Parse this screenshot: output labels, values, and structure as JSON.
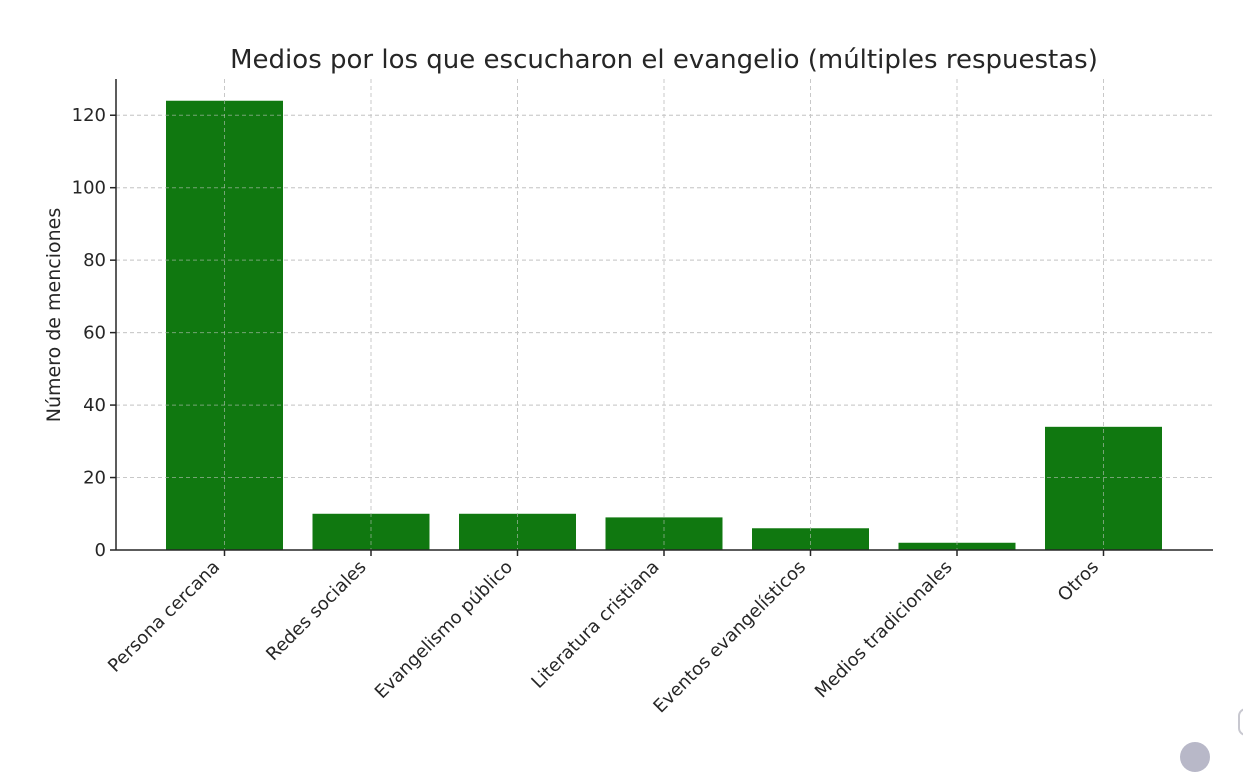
{
  "chart_data": {
    "type": "bar",
    "title": "Medios por los que escucharon el evangelio (múltiples respuestas)",
    "xlabel": "",
    "ylabel": "Número de menciones",
    "categories": [
      "Persona cercana",
      "Redes sociales",
      "Evangelismo público",
      "Literatura cristiana",
      "Eventos evangelísticos",
      "Medios tradicionales",
      "Otros"
    ],
    "values": [
      124,
      10,
      10,
      9,
      6,
      2,
      34
    ],
    "ylim": [
      0,
      130
    ],
    "yticks": [
      0,
      20,
      40,
      60,
      80,
      100,
      120
    ],
    "bar_color": "#107810",
    "grid": true
  }
}
